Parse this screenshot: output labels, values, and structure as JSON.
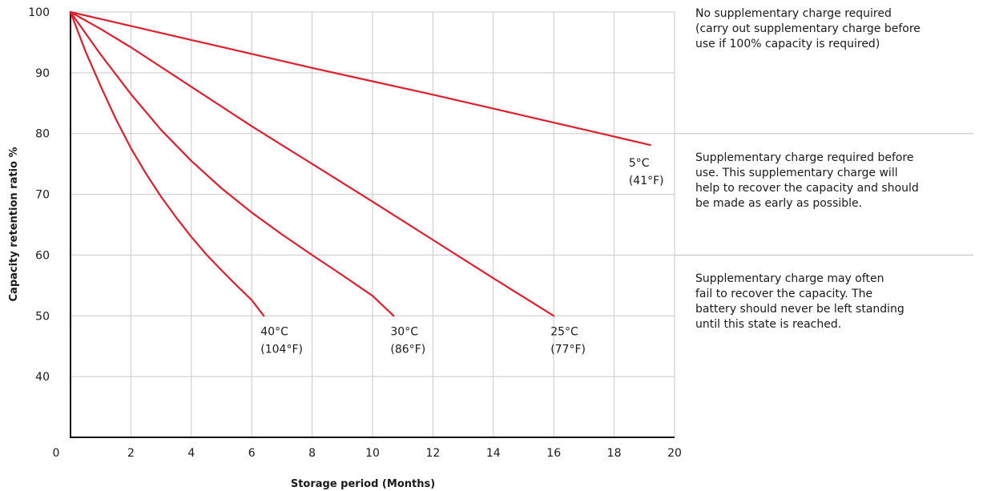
{
  "chart_data": {
    "type": "line",
    "xlabel": "Storage period (Months)",
    "ylabel": "Capacity retention ratio %",
    "xlim": [
      0,
      20
    ],
    "ylim": [
      30,
      100
    ],
    "x_ticks": [
      0,
      2,
      4,
      6,
      8,
      10,
      12,
      14,
      16,
      18,
      20
    ],
    "y_ticks": [
      40,
      50,
      60,
      70,
      80,
      90,
      100
    ],
    "grid": true,
    "line_color": "#e01e2d",
    "series": [
      {
        "name": "40°C (104°F)",
        "label_lines": [
          "40°C",
          "(104°F)"
        ],
        "x": [
          0,
          0.5,
          1,
          1.5,
          2,
          2.5,
          3,
          3.5,
          4,
          4.5,
          5,
          5.5,
          6,
          6.4
        ],
        "y": [
          100,
          93.5,
          87.8,
          82.4,
          77.6,
          73.4,
          69.6,
          66.2,
          63.0,
          60.1,
          57.5,
          55.0,
          52.6,
          50
        ]
      },
      {
        "name": "30°C (86°F)",
        "label_lines": [
          "30°C",
          "(86°F)"
        ],
        "x": [
          0,
          1,
          2,
          3,
          4,
          5,
          6,
          7,
          8,
          9,
          10,
          10.7
        ],
        "y": [
          100,
          93.0,
          86.5,
          80.6,
          75.5,
          71.0,
          67.0,
          63.4,
          60.0,
          56.7,
          53.3,
          50
        ]
      },
      {
        "name": "25°C (77°F)",
        "label_lines": [
          "25°C",
          "(77°F)"
        ],
        "x": [
          0,
          1,
          2,
          4,
          6,
          8,
          10,
          12,
          14,
          16
        ],
        "y": [
          100,
          97.2,
          94.2,
          87.7,
          81.2,
          75.0,
          68.8,
          62.5,
          56.2,
          50
        ]
      },
      {
        "name": "5°C (41°F)",
        "label_lines": [
          "5°C",
          "(41°F)"
        ],
        "x": [
          0,
          2,
          4,
          6,
          8,
          10,
          12,
          14,
          16,
          18,
          19.2
        ],
        "y": [
          100,
          97.7,
          95.4,
          93.1,
          90.8,
          88.6,
          86.4,
          84.1,
          81.8,
          79.5,
          78.1
        ]
      }
    ],
    "zone_dividers_y": [
      80,
      60
    ],
    "annotations": [
      [
        "No supplementary charge required",
        "(carry out supplementary charge before",
        "use if 100% capacity is required)"
      ],
      [
        "Supplementary charge required before",
        "use. This supplementary charge will",
        "help to recover the capacity and should",
        "be made as early as possible."
      ],
      [
        "Supplementary charge may often",
        "fail to recover the capacity. The",
        "battery should never be left standing",
        "until this state is reached."
      ]
    ]
  }
}
